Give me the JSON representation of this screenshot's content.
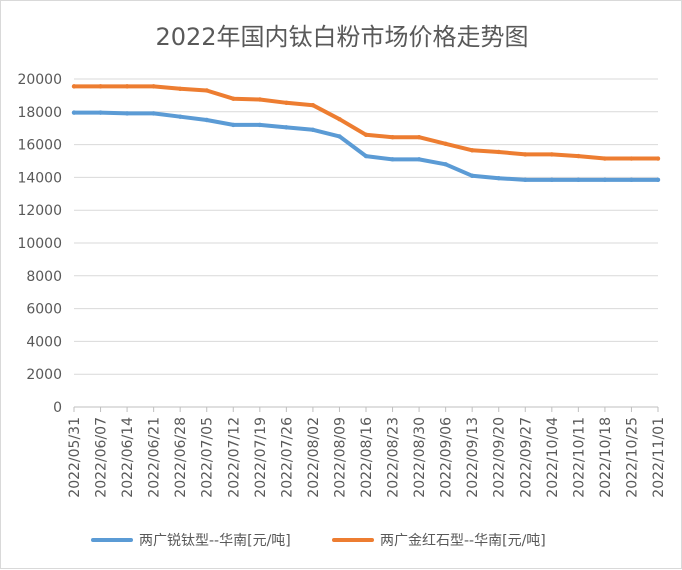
{
  "chart_data": {
    "type": "line",
    "title": "2022年国内钛白粉市场价格走势图",
    "xlabel": "",
    "ylabel": "",
    "ylim": [
      0,
      20000
    ],
    "yticks": [
      0,
      2000,
      4000,
      6000,
      8000,
      10000,
      12000,
      14000,
      16000,
      18000,
      20000
    ],
    "x": [
      "2022/05/31",
      "2022/06/07",
      "2022/06/14",
      "2022/06/21",
      "2022/06/28",
      "2022/07/05",
      "2022/07/12",
      "2022/07/19",
      "2022/07/26",
      "2022/08/02",
      "2022/08/09",
      "2022/08/16",
      "2022/08/23",
      "2022/08/30",
      "2022/09/06",
      "2022/09/13",
      "2022/09/20",
      "2022/09/27",
      "2022/10/04",
      "2022/10/11",
      "2022/10/18",
      "2022/10/25",
      "2022/11/01"
    ],
    "grid": true,
    "legend_position": "bottom",
    "series": [
      {
        "name": "两广锐钛型--华南[元/吨]",
        "color": "#5b9bd5",
        "values": [
          17950,
          17950,
          17900,
          17900,
          17700,
          17500,
          17200,
          17200,
          17050,
          16900,
          16500,
          15300,
          15100,
          15100,
          14800,
          14100,
          13950,
          13850,
          13850,
          13850,
          13850,
          13850,
          13850
        ]
      },
      {
        "name": "两广金红石型--华南[元/吨]",
        "color": "#ed7d31",
        "values": [
          19550,
          19550,
          19550,
          19550,
          19400,
          19300,
          18800,
          18750,
          18550,
          18400,
          17550,
          16600,
          16450,
          16450,
          16050,
          15650,
          15550,
          15400,
          15400,
          15300,
          15150,
          15150,
          15150
        ]
      }
    ]
  }
}
